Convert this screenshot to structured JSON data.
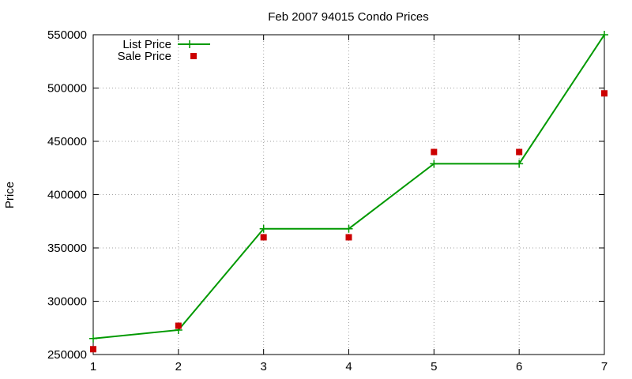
{
  "chart_data": {
    "type": "line",
    "title": "Feb 2007 94015 Condo Prices",
    "xlabel": "",
    "ylabel": "Price",
    "x": [
      1,
      2,
      3,
      4,
      5,
      6,
      7
    ],
    "xlim": [
      1,
      7
    ],
    "ylim": [
      250000,
      550000
    ],
    "xticks": [
      "1",
      "2",
      "3",
      "4",
      "5",
      "6",
      "7"
    ],
    "yticks": [
      "250000",
      "300000",
      "350000",
      "400000",
      "450000",
      "500000",
      "550000"
    ],
    "grid": true,
    "legend_position": "top-left",
    "series": [
      {
        "name": "List Price",
        "style": "line-with-plus-markers",
        "color": "#009900",
        "values": [
          265000,
          273000,
          368000,
          368000,
          429000,
          429000,
          550000
        ]
      },
      {
        "name": "Sale Price",
        "style": "square-markers",
        "color": "#cc0000",
        "values": [
          255000,
          277000,
          360000,
          360000,
          440000,
          440000,
          495000
        ]
      }
    ]
  }
}
